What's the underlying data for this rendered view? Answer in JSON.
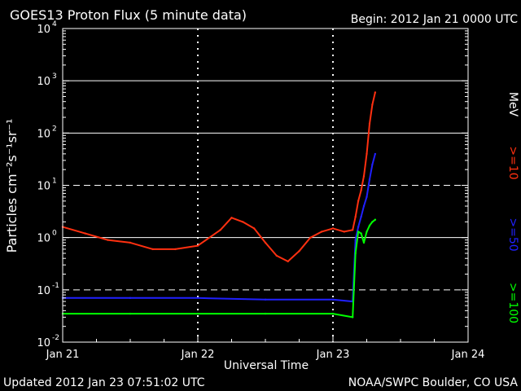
{
  "header": {
    "title": "GOES13 Proton Flux (5 minute data)",
    "begin": "Begin: 2012 Jan 21 0000 UTC"
  },
  "footer": {
    "updated": "Updated 2012 Jan 23 07:51:02 UTC",
    "source": "NOAA/SWPC Boulder, CO USA"
  },
  "colors": {
    "background": "#000000",
    "axes": "#ffffff",
    "gte10": "#ff3010",
    "gte50": "#2020ff",
    "gte100": "#00ff00"
  },
  "chart_data": {
    "type": "line",
    "title": "GOES13 Proton Flux (5 minute data)",
    "xlabel": "Universal Time",
    "ylabel": "Particles cm⁻²s⁻¹sr⁻¹",
    "y_scale": "log",
    "ylim": [
      0.01,
      10000
    ],
    "y_ticks": [
      {
        "value": 0.01,
        "base": "10",
        "exp": "-2"
      },
      {
        "value": 0.1,
        "base": "10",
        "exp": "-1"
      },
      {
        "value": 1,
        "base": "10",
        "exp": "0"
      },
      {
        "value": 10,
        "base": "10",
        "exp": "1"
      },
      {
        "value": 100,
        "base": "10",
        "exp": "2"
      },
      {
        "value": 1000,
        "base": "10",
        "exp": "3"
      },
      {
        "value": 10000,
        "base": "10",
        "exp": "4"
      }
    ],
    "x_ticks": [
      "Jan 21",
      "Jan 22",
      "Jan 23",
      "Jan 24"
    ],
    "xlim": [
      "2012-01-21 00:00",
      "2012-01-24 00:00"
    ],
    "grid": "horizontal solid lines at 10^0, 10^2, 10^3; dashed at 10^1 and 10^-1; dashed vertical lines at day boundaries",
    "legend": {
      "position": "right",
      "unit": "MeV",
      "entries": [
        ">=10",
        ">=50",
        ">=100"
      ]
    },
    "series": [
      {
        "name": ">=10",
        "color": "#ff3010",
        "x": [
          "2012-01-21 00:00",
          "2012-01-21 04:00",
          "2012-01-21 08:00",
          "2012-01-21 12:00",
          "2012-01-21 16:00",
          "2012-01-21 20:00",
          "2012-01-22 00:00",
          "2012-01-22 04:00",
          "2012-01-22 06:00",
          "2012-01-22 08:00",
          "2012-01-22 10:00",
          "2012-01-22 12:00",
          "2012-01-22 14:00",
          "2012-01-22 16:00",
          "2012-01-22 18:00",
          "2012-01-22 20:00",
          "2012-01-22 22:00",
          "2012-01-23 00:00",
          "2012-01-23 02:00",
          "2012-01-23 03:30",
          "2012-01-23 04:00",
          "2012-01-23 04:30",
          "2012-01-23 05:00",
          "2012-01-23 05:30",
          "2012-01-23 06:00",
          "2012-01-23 06:30",
          "2012-01-23 07:00",
          "2012-01-23 07:30"
        ],
        "values": [
          1.6,
          1.2,
          0.9,
          0.8,
          0.6,
          0.6,
          0.7,
          1.4,
          2.4,
          2.0,
          1.5,
          0.8,
          0.45,
          0.35,
          0.55,
          1.0,
          1.3,
          1.5,
          1.3,
          1.4,
          2.5,
          5,
          8,
          15,
          40,
          150,
          350,
          600
        ]
      },
      {
        "name": ">=50",
        "color": "#2020ff",
        "x": [
          "2012-01-21 00:00",
          "2012-01-21 12:00",
          "2012-01-22 00:00",
          "2012-01-22 12:00",
          "2012-01-23 00:00",
          "2012-01-23 03:30",
          "2012-01-23 04:00",
          "2012-01-23 04:30",
          "2012-01-23 05:00",
          "2012-01-23 05:30",
          "2012-01-23 06:00",
          "2012-01-23 06:30",
          "2012-01-23 07:00",
          "2012-01-23 07:30"
        ],
        "values": [
          0.07,
          0.07,
          0.07,
          0.065,
          0.065,
          0.06,
          0.9,
          1.6,
          2.5,
          4,
          6,
          13,
          25,
          40
        ]
      },
      {
        "name": ">=100",
        "color": "#00ff00",
        "x": [
          "2012-01-21 00:00",
          "2012-01-21 12:00",
          "2012-01-22 00:00",
          "2012-01-22 12:00",
          "2012-01-23 00:00",
          "2012-01-23 03:30",
          "2012-01-23 04:00",
          "2012-01-23 04:30",
          "2012-01-23 05:00",
          "2012-01-23 05:30",
          "2012-01-23 06:00",
          "2012-01-23 06:30",
          "2012-01-23 07:00",
          "2012-01-23 07:30"
        ],
        "values": [
          0.035,
          0.035,
          0.035,
          0.035,
          0.035,
          0.03,
          0.5,
          1.3,
          1.2,
          0.8,
          1.3,
          1.7,
          2.0,
          2.2
        ]
      }
    ]
  }
}
